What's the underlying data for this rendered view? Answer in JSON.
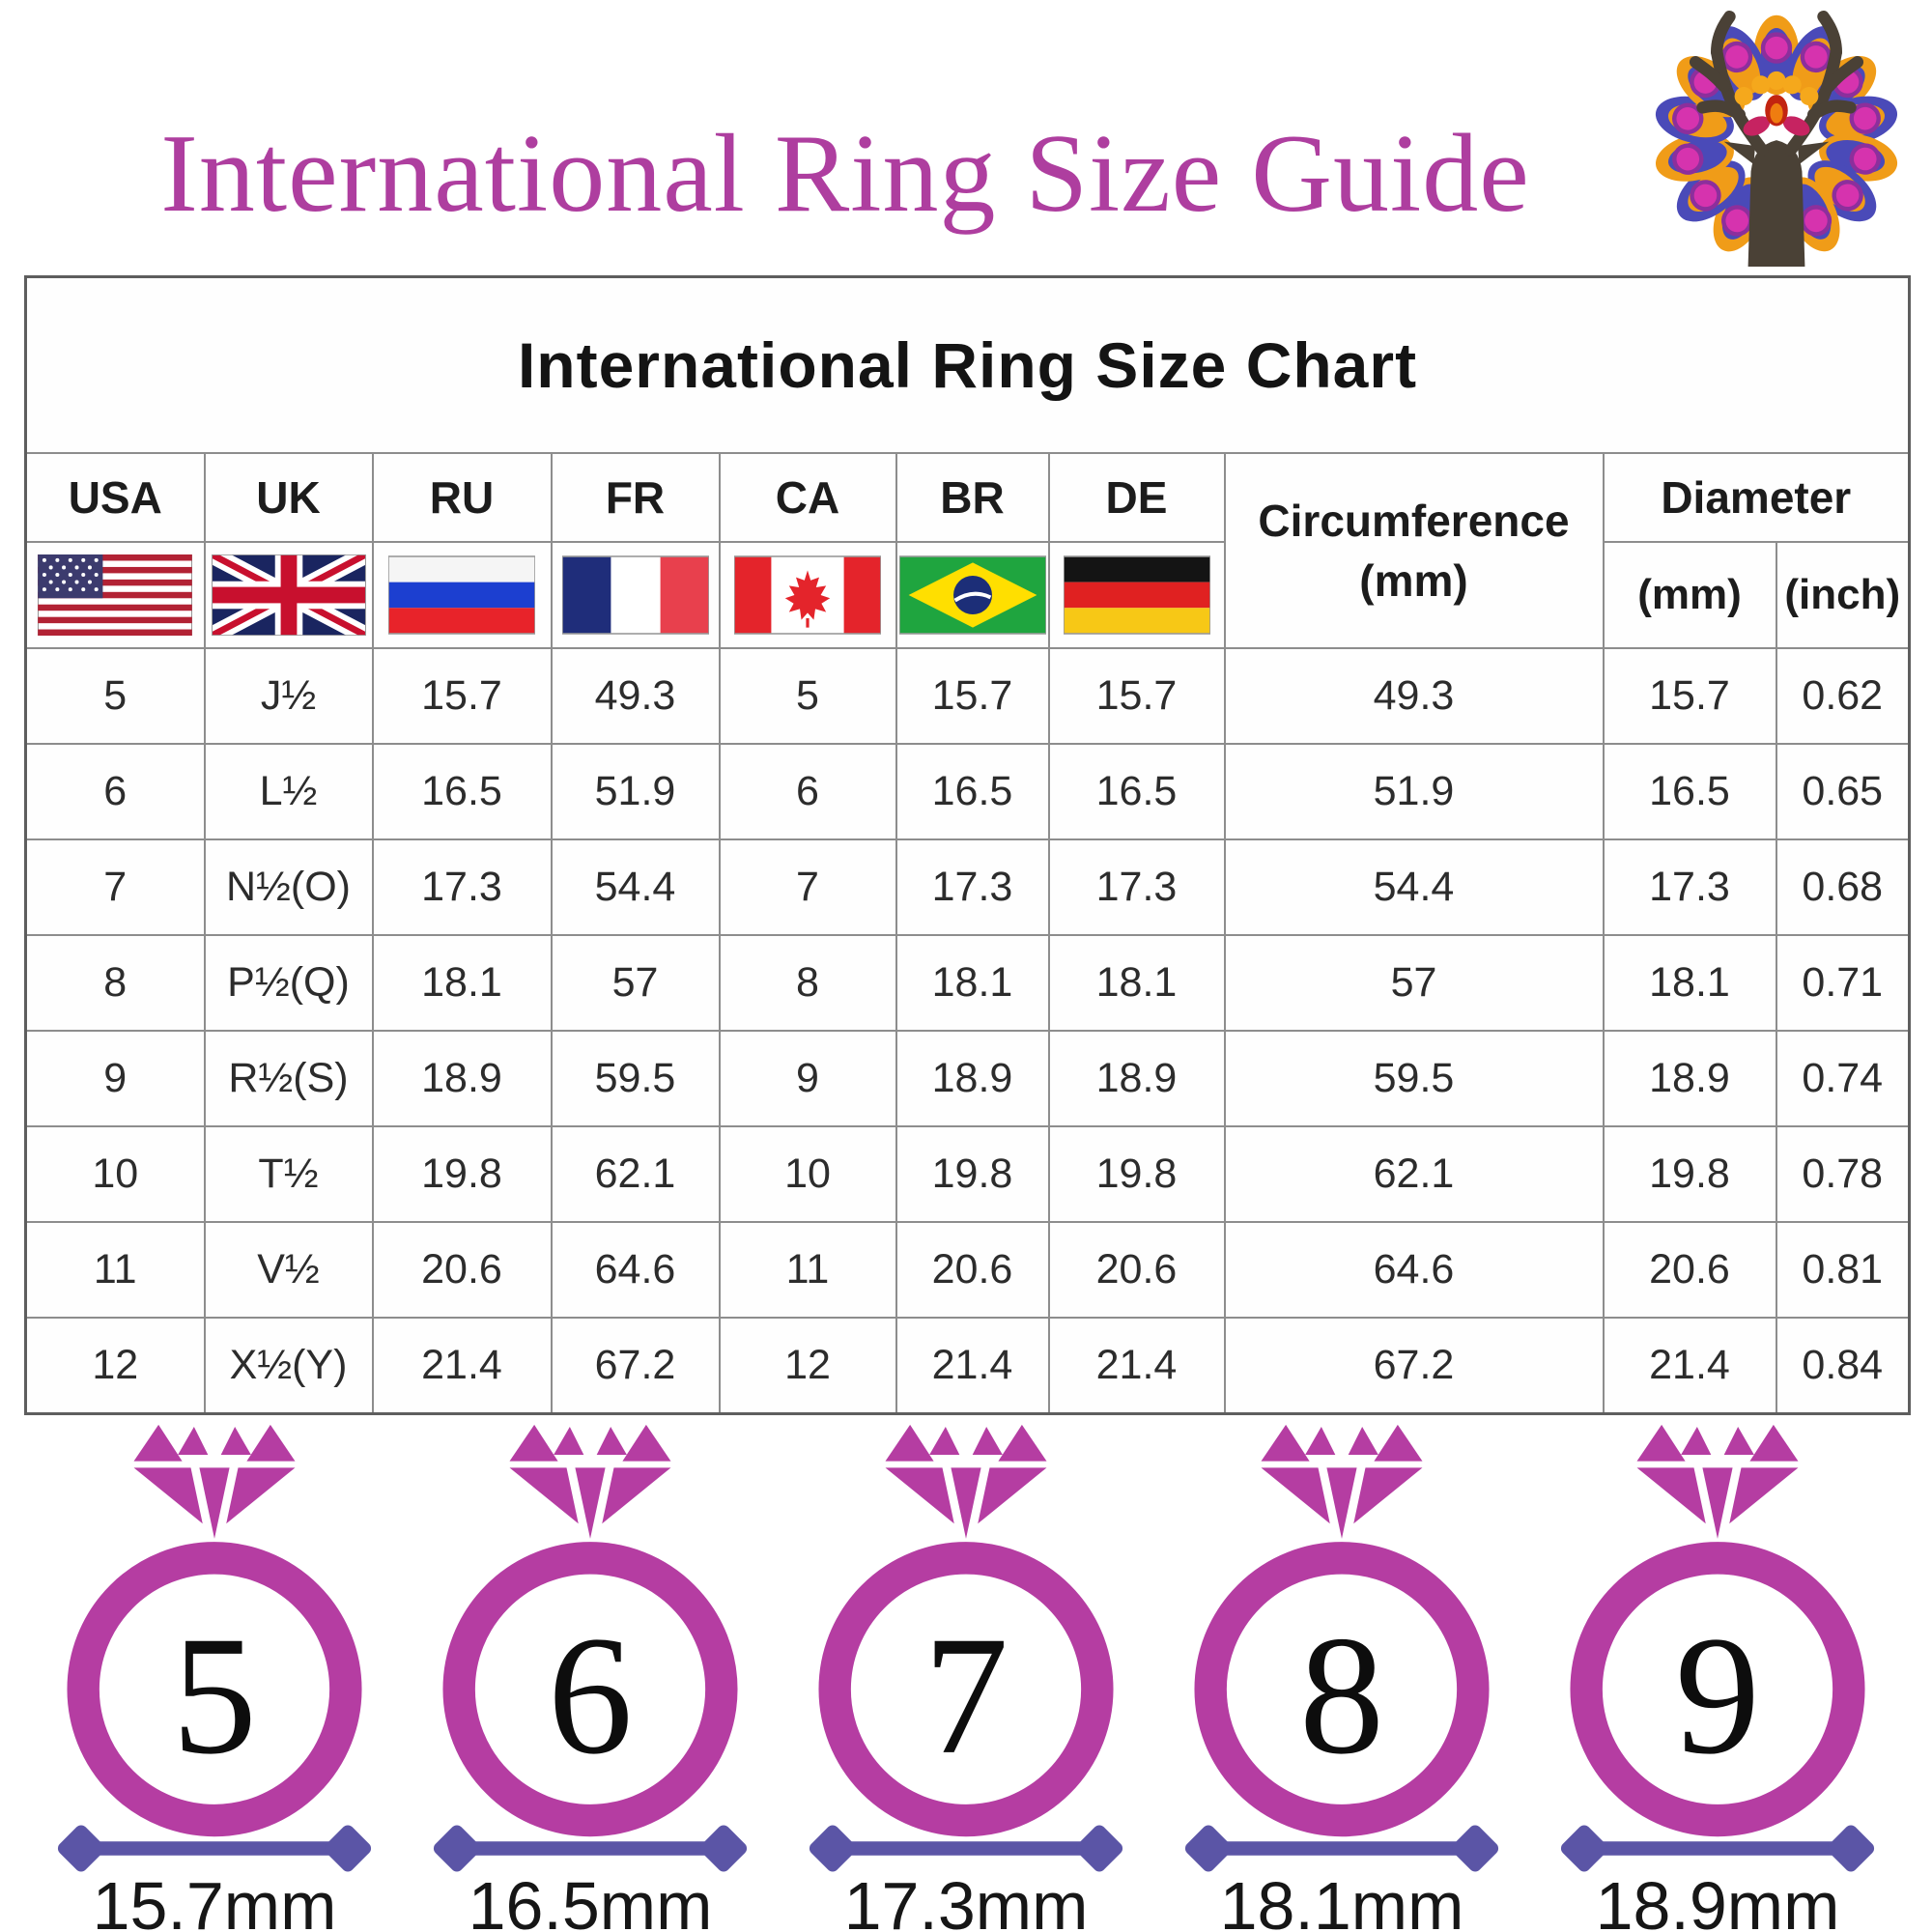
{
  "header": {
    "title": "International Ring Size Guide",
    "logo_icon": "deer-mandala-logo",
    "title_color": "#ae3e9f"
  },
  "table": {
    "title": "International Ring Size Chart",
    "columns": [
      {
        "code": "USA",
        "flag_icon": "usa-flag"
      },
      {
        "code": "UK",
        "flag_icon": "uk-flag"
      },
      {
        "code": "RU",
        "flag_icon": "russia-flag"
      },
      {
        "code": "FR",
        "flag_icon": "france-flag"
      },
      {
        "code": "CA",
        "flag_icon": "canada-flag"
      },
      {
        "code": "BR",
        "flag_icon": "brazil-flag"
      },
      {
        "code": "DE",
        "flag_icon": "germany-flag"
      }
    ],
    "circumference_label": "Circumference",
    "circumference_unit": "(mm)",
    "diameter_label": "Diameter",
    "diameter_mm_label": "(mm)",
    "diameter_inch_label": "(inch)",
    "rows": [
      [
        "5",
        "J½",
        "15.7",
        "49.3",
        "5",
        "15.7",
        "15.7",
        "49.3",
        "15.7",
        "0.62"
      ],
      [
        "6",
        "L½",
        "16.5",
        "51.9",
        "6",
        "16.5",
        "16.5",
        "51.9",
        "16.5",
        "0.65"
      ],
      [
        "7",
        "N½(O)",
        "17.3",
        "54.4",
        "7",
        "17.3",
        "17.3",
        "54.4",
        "17.3",
        "0.68"
      ],
      [
        "8",
        "P½(Q)",
        "18.1",
        "57",
        "8",
        "18.1",
        "18.1",
        "57",
        "18.1",
        "0.71"
      ],
      [
        "9",
        "R½(S)",
        "18.9",
        "59.5",
        "9",
        "18.9",
        "18.9",
        "59.5",
        "18.9",
        "0.74"
      ],
      [
        "10",
        "T½",
        "19.8",
        "62.1",
        "10",
        "19.8",
        "19.8",
        "62.1",
        "19.8",
        "0.78"
      ],
      [
        "11",
        "V½",
        "20.6",
        "64.6",
        "11",
        "20.6",
        "20.6",
        "64.6",
        "20.6",
        "0.81"
      ],
      [
        "12",
        "X½(Y)",
        "21.4",
        "67.2",
        "12",
        "21.4",
        "21.4",
        "67.2",
        "21.4",
        "0.84"
      ]
    ]
  },
  "rings": [
    {
      "size": "5",
      "diameter": "15.7mm"
    },
    {
      "size": "6",
      "diameter": "16.5mm"
    },
    {
      "size": "7",
      "diameter": "17.3mm"
    },
    {
      "size": "8",
      "diameter": "18.1mm"
    },
    {
      "size": "9",
      "diameter": "18.9mm"
    }
  ],
  "colors": {
    "title_magenta": "#ae3e9f",
    "ring_magenta": "#b53da2",
    "measure_purple": "#5b55a6",
    "table_text": "#2c2c2c",
    "border_gray": "#8d8d8d"
  }
}
